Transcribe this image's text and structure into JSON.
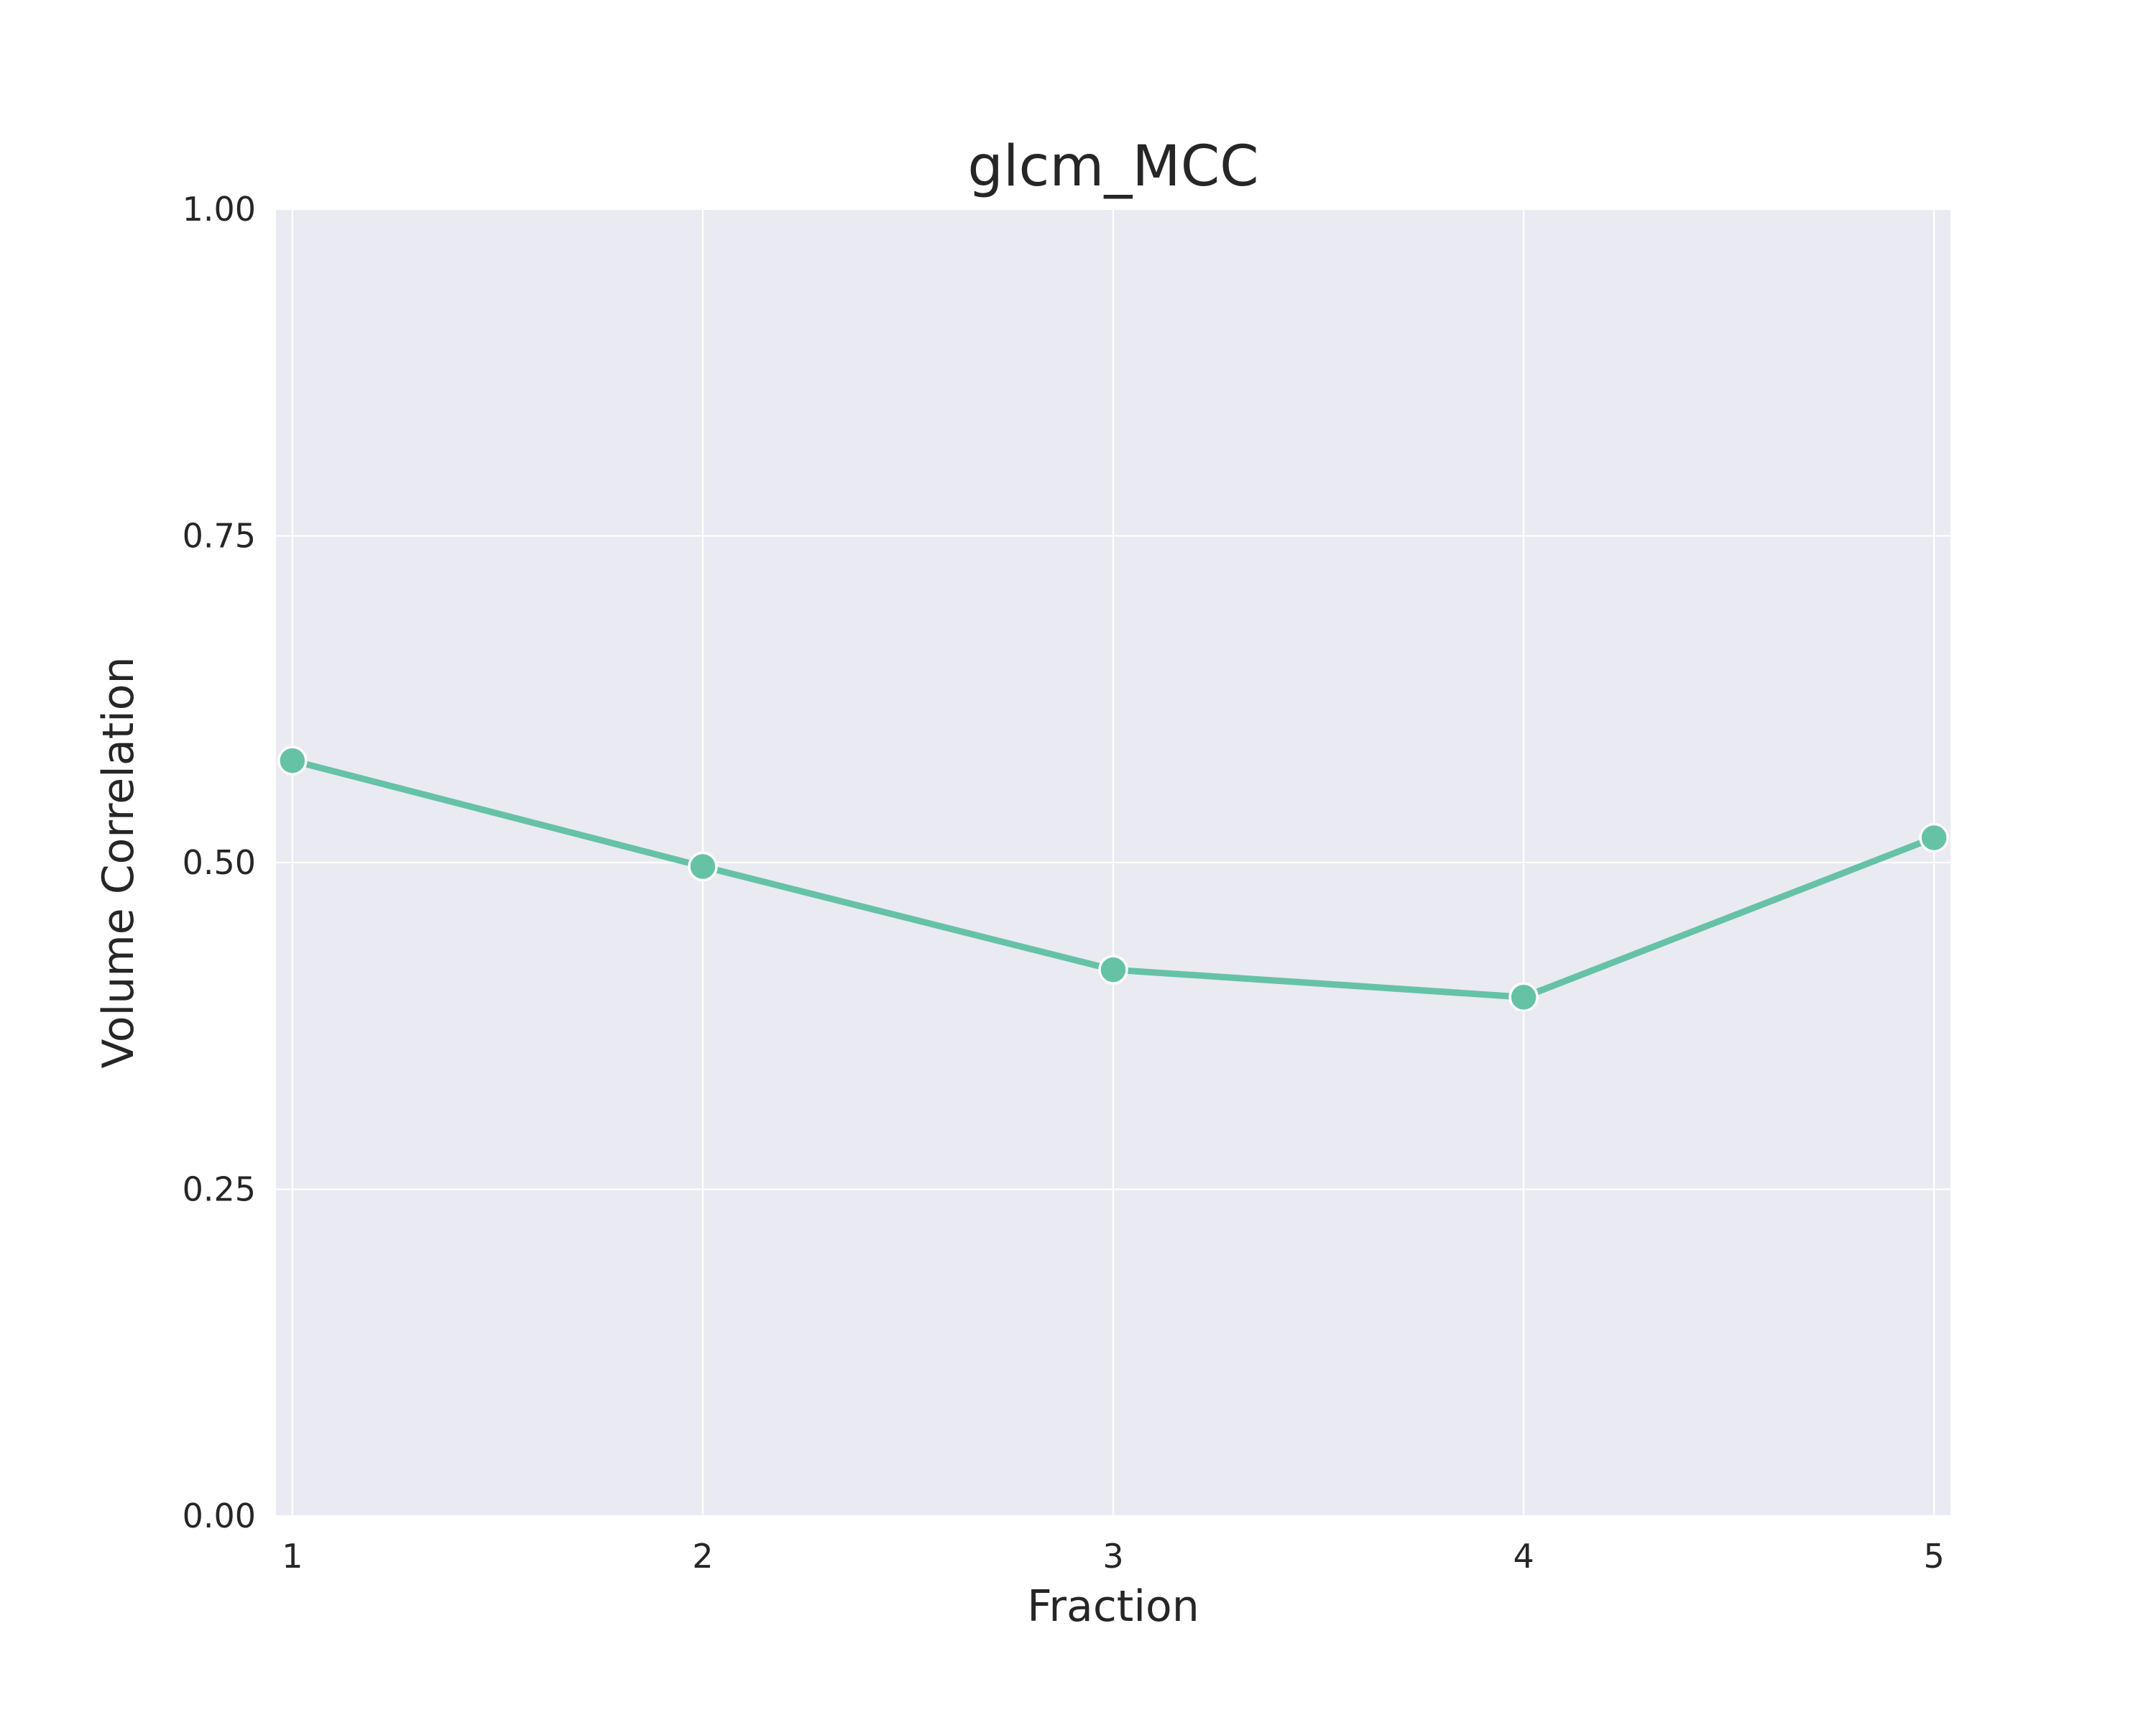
{
  "chart_data": {
    "type": "line",
    "title": "glcm_MCC",
    "xlabel": "Fraction",
    "ylabel": "Volume Correlation",
    "x": [
      1,
      2,
      3,
      4,
      5
    ],
    "xtick_labels": [
      "1",
      "2",
      "3",
      "4",
      "5"
    ],
    "ytick_values": [
      0,
      0.25,
      0.5,
      0.75,
      1
    ],
    "ytick_labels": [
      "0.00",
      "0.25",
      "0.50",
      "0.75",
      "1.00"
    ],
    "xlim": [
      0.96,
      5.04
    ],
    "ylim": [
      0,
      1
    ],
    "grid": true,
    "series": [
      {
        "values": [
          0.578,
          0.497,
          0.418,
          0.397,
          0.519
        ]
      }
    ],
    "colors": {
      "series": "#66c2a5",
      "axes_background": "#eaeaf2",
      "grid": "#ffffff",
      "text": "#262626"
    }
  }
}
